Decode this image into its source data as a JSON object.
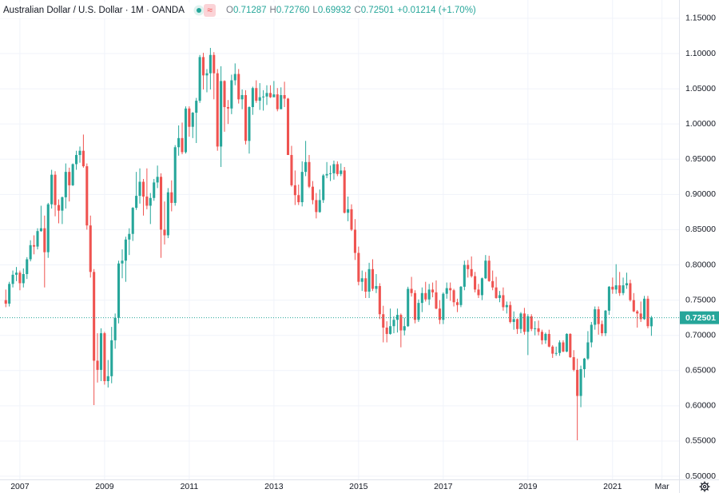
{
  "chart_data": {
    "type": "candlestick",
    "title": "Australian Dollar / U.S. Dollar · 1M · OANDA",
    "badge": "≈",
    "ohlc_legend": [
      {
        "key": "O",
        "value": "0.71287"
      },
      {
        "key": "H",
        "value": "0.72760"
      },
      {
        "key": "L",
        "value": "0.69932"
      },
      {
        "key": "C",
        "value": "0.72501"
      }
    ],
    "change": "+0.01214 (+1.70%)",
    "up_color": "#26a69a",
    "down_color": "#ef5350",
    "last_price": 0.72501,
    "grid": true,
    "xlim": [
      2006.53,
      2022.57
    ],
    "xticks": [
      2007,
      2009,
      2011,
      2013,
      2015,
      2017,
      2019,
      2021,
      {
        "value": 2022.167,
        "label": "Mar"
      }
    ],
    "ylim": [
      0.4955,
      1.176
    ],
    "yticks": [
      {
        "value": 0.5,
        "label": "0.50000"
      },
      {
        "value": 0.55,
        "label": "0.55000"
      },
      {
        "value": 0.6,
        "label": "0.60000"
      },
      {
        "value": 0.65,
        "label": "0.65000"
      },
      {
        "value": 0.7,
        "label": "0.70000"
      },
      {
        "value": 0.75,
        "label": "0.75000"
      },
      {
        "value": 0.8,
        "label": "0.80000"
      },
      {
        "value": 0.85,
        "label": "0.85000"
      },
      {
        "value": 0.9,
        "label": "0.90000"
      },
      {
        "value": 0.95,
        "label": "0.95000"
      },
      {
        "value": 1.0,
        "label": "1.00000"
      },
      {
        "value": 1.05,
        "label": "1.05000"
      },
      {
        "value": 1.1,
        "label": "1.10000"
      },
      {
        "value": 1.15,
        "label": "1.15000"
      }
    ],
    "x": [
      2006.667,
      2006.75,
      2006.833,
      2006.917,
      2007,
      2007.083,
      2007.167,
      2007.25,
      2007.333,
      2007.417,
      2007.5,
      2007.583,
      2007.667,
      2007.75,
      2007.833,
      2007.917,
      2008,
      2008.083,
      2008.167,
      2008.25,
      2008.333,
      2008.417,
      2008.5,
      2008.583,
      2008.667,
      2008.75,
      2008.833,
      2008.917,
      2009,
      2009.083,
      2009.167,
      2009.25,
      2009.333,
      2009.417,
      2009.5,
      2009.583,
      2009.667,
      2009.75,
      2009.833,
      2009.917,
      2010,
      2010.083,
      2010.167,
      2010.25,
      2010.333,
      2010.417,
      2010.5,
      2010.583,
      2010.667,
      2010.75,
      2010.833,
      2010.917,
      2011,
      2011.083,
      2011.167,
      2011.25,
      2011.333,
      2011.417,
      2011.5,
      2011.583,
      2011.667,
      2011.75,
      2011.833,
      2011.917,
      2012,
      2012.083,
      2012.167,
      2012.25,
      2012.333,
      2012.417,
      2012.5,
      2012.583,
      2012.667,
      2012.75,
      2012.833,
      2012.917,
      2013,
      2013.083,
      2013.167,
      2013.25,
      2013.333,
      2013.417,
      2013.5,
      2013.583,
      2013.667,
      2013.75,
      2013.833,
      2013.917,
      2014,
      2014.083,
      2014.167,
      2014.25,
      2014.333,
      2014.417,
      2014.5,
      2014.583,
      2014.667,
      2014.75,
      2014.833,
      2014.917,
      2015,
      2015.083,
      2015.167,
      2015.25,
      2015.333,
      2015.417,
      2015.5,
      2015.583,
      2015.667,
      2015.75,
      2015.833,
      2015.917,
      2016,
      2016.083,
      2016.167,
      2016.25,
      2016.333,
      2016.417,
      2016.5,
      2016.583,
      2016.667,
      2016.75,
      2016.833,
      2016.917,
      2017,
      2017.083,
      2017.167,
      2017.25,
      2017.333,
      2017.417,
      2017.5,
      2017.583,
      2017.667,
      2017.75,
      2017.833,
      2017.917,
      2018,
      2018.083,
      2018.167,
      2018.25,
      2018.333,
      2018.417,
      2018.5,
      2018.583,
      2018.667,
      2018.75,
      2018.833,
      2018.917,
      2019,
      2019.083,
      2019.167,
      2019.25,
      2019.333,
      2019.417,
      2019.5,
      2019.583,
      2019.667,
      2019.75,
      2019.833,
      2019.917,
      2020,
      2020.083,
      2020.167,
      2020.25,
      2020.333,
      2020.417,
      2020.5,
      2020.583,
      2020.667,
      2020.75,
      2020.833,
      2020.917,
      2021,
      2021.083,
      2021.167,
      2021.25,
      2021.333,
      2021.417,
      2021.5,
      2021.583,
      2021.667,
      2021.75,
      2021.833,
      2021.917
    ],
    "open": [
      0.75,
      0.745,
      0.773,
      0.786,
      0.789,
      0.774,
      0.787,
      0.808,
      0.828,
      0.826,
      0.848,
      0.852,
      0.818,
      0.886,
      0.928,
      0.885,
      0.877,
      0.896,
      0.932,
      0.913,
      0.943,
      0.956,
      0.962,
      0.94,
      0.856,
      0.79,
      0.664,
      0.651,
      0.703,
      0.635,
      0.642,
      0.693,
      0.725,
      0.802,
      0.806,
      0.836,
      0.844,
      0.881,
      0.898,
      0.918,
      0.897,
      0.884,
      0.895,
      0.917,
      0.925,
      0.85,
      0.842,
      0.903,
      0.888,
      0.967,
      0.98,
      0.96,
      1.022,
      0.996,
      1.016,
      1.033,
      1.095,
      1.069,
      1.072,
      1.098,
      1.072,
      0.968,
      1.061,
      1.024,
      1.022,
      1.062,
      1.071,
      1.035,
      1.041,
      0.976,
      1.024,
      1.051,
      1.033,
      1.038,
      1.039,
      1.044,
      1.038,
      1.042,
      1.021,
      1.041,
      1.036,
      0.956,
      0.913,
      0.899,
      0.889,
      0.932,
      0.946,
      0.911,
      0.892,
      0.875,
      0.892,
      0.927,
      0.929,
      0.93,
      0.943,
      0.929,
      0.934,
      0.874,
      0.879,
      0.85,
      0.817,
      0.776,
      0.781,
      0.762,
      0.794,
      0.766,
      0.77,
      0.73,
      0.711,
      0.702,
      0.713,
      0.722,
      0.729,
      0.707,
      0.713,
      0.766,
      0.76,
      0.722,
      0.746,
      0.76,
      0.751,
      0.765,
      0.761,
      0.738,
      0.722,
      0.759,
      0.767,
      0.764,
      0.747,
      0.743,
      0.769,
      0.8,
      0.794,
      0.784,
      0.765,
      0.757,
      0.781,
      0.806,
      0.777,
      0.768,
      0.753,
      0.757,
      0.74,
      0.743,
      0.719,
      0.723,
      0.709,
      0.731,
      0.705,
      0.727,
      0.709,
      0.71,
      0.705,
      0.693,
      0.702,
      0.684,
      0.674,
      0.675,
      0.69,
      0.677,
      0.702,
      0.669,
      0.651,
      0.614,
      0.652,
      0.667,
      0.69,
      0.715,
      0.737,
      0.716,
      0.703,
      0.735,
      0.769,
      0.765,
      0.771,
      0.76,
      0.771,
      0.774,
      0.75,
      0.734,
      0.731,
      0.723,
      0.752,
      0.71287
    ],
    "high": [
      0.765,
      0.776,
      0.792,
      0.797,
      0.792,
      0.795,
      0.811,
      0.835,
      0.842,
      0.852,
      0.884,
      0.87,
      0.888,
      0.935,
      0.933,
      0.893,
      0.897,
      0.944,
      0.938,
      0.944,
      0.962,
      0.968,
      0.985,
      0.944,
      0.87,
      0.794,
      0.703,
      0.71,
      0.705,
      0.665,
      0.712,
      0.731,
      0.806,
      0.822,
      0.84,
      0.852,
      0.882,
      0.932,
      0.937,
      0.922,
      0.937,
      0.902,
      0.922,
      0.941,
      0.93,
      0.89,
      0.909,
      0.92,
      0.97,
      0.998,
      1.002,
      1.025,
      1.025,
      1.017,
      1.037,
      1.098,
      1.101,
      1.078,
      1.108,
      1.102,
      1.078,
      1.082,
      1.062,
      1.034,
      1.07,
      1.086,
      1.078,
      1.049,
      1.048,
      1.025,
      1.053,
      1.062,
      1.058,
      1.048,
      1.055,
      1.055,
      1.061,
      1.051,
      1.052,
      1.06,
      1.037,
      0.969,
      0.934,
      0.914,
      0.947,
      0.976,
      0.956,
      0.919,
      0.902,
      0.907,
      0.929,
      0.946,
      0.941,
      0.948,
      0.947,
      0.944,
      0.939,
      0.897,
      0.886,
      0.865,
      0.826,
      0.792,
      0.79,
      0.803,
      0.808,
      0.787,
      0.774,
      0.742,
      0.72,
      0.738,
      0.727,
      0.738,
      0.731,
      0.725,
      0.769,
      0.783,
      0.764,
      0.751,
      0.768,
      0.776,
      0.773,
      0.775,
      0.778,
      0.75,
      0.761,
      0.775,
      0.775,
      0.766,
      0.752,
      0.77,
      0.806,
      0.807,
      0.812,
      0.79,
      0.773,
      0.782,
      0.814,
      0.813,
      0.792,
      0.783,
      0.763,
      0.768,
      0.748,
      0.748,
      0.734,
      0.724,
      0.733,
      0.739,
      0.73,
      0.73,
      0.72,
      0.721,
      0.708,
      0.704,
      0.708,
      0.686,
      0.684,
      0.693,
      0.693,
      0.703,
      0.703,
      0.679,
      0.667,
      0.657,
      0.668,
      0.706,
      0.719,
      0.741,
      0.741,
      0.721,
      0.736,
      0.77,
      0.782,
      0.801,
      0.79,
      0.782,
      0.789,
      0.779,
      0.76,
      0.736,
      0.748,
      0.756,
      0.756,
      0.7276
    ],
    "low": [
      0.74,
      0.741,
      0.768,
      0.777,
      0.764,
      0.768,
      0.78,
      0.805,
      0.815,
      0.822,
      0.847,
      0.768,
      0.81,
      0.88,
      0.869,
      0.859,
      0.858,
      0.88,
      0.89,
      0.912,
      0.935,
      0.945,
      0.938,
      0.85,
      0.782,
      0.601,
      0.633,
      0.635,
      0.63,
      0.626,
      0.632,
      0.681,
      0.717,
      0.781,
      0.776,
      0.814,
      0.834,
      0.878,
      0.887,
      0.87,
      0.879,
      0.858,
      0.891,
      0.909,
      0.81,
      0.829,
      0.838,
      0.876,
      0.884,
      0.955,
      0.957,
      0.958,
      0.982,
      0.98,
      0.973,
      1.03,
      1.049,
      1.045,
      1.049,
      1.035,
      0.962,
      0.939,
      0.989,
      1.0,
      1.014,
      1.055,
      1.029,
      1.021,
      0.971,
      0.958,
      1.013,
      1.03,
      1.02,
      1.019,
      1.027,
      1.037,
      1.038,
      1.018,
      1.021,
      1.024,
      0.956,
      0.911,
      0.885,
      0.885,
      0.883,
      0.926,
      0.909,
      0.886,
      0.866,
      0.874,
      0.888,
      0.923,
      0.919,
      0.921,
      0.926,
      0.926,
      0.873,
      0.862,
      0.848,
      0.807,
      0.771,
      0.763,
      0.753,
      0.753,
      0.763,
      0.76,
      0.723,
      0.69,
      0.69,
      0.701,
      0.703,
      0.704,
      0.683,
      0.7,
      0.712,
      0.755,
      0.717,
      0.719,
      0.733,
      0.748,
      0.743,
      0.754,
      0.737,
      0.716,
      0.716,
      0.752,
      0.749,
      0.741,
      0.733,
      0.74,
      0.764,
      0.782,
      0.782,
      0.761,
      0.753,
      0.75,
      0.78,
      0.776,
      0.764,
      0.752,
      0.747,
      0.735,
      0.731,
      0.717,
      0.708,
      0.702,
      0.703,
      0.701,
      0.672,
      0.706,
      0.7,
      0.7,
      0.687,
      0.688,
      0.683,
      0.668,
      0.671,
      0.671,
      0.676,
      0.676,
      0.668,
      0.649,
      0.551,
      0.598,
      0.64,
      0.665,
      0.683,
      0.708,
      0.701,
      0.699,
      0.699,
      0.729,
      0.759,
      0.759,
      0.756,
      0.757,
      0.766,
      0.748,
      0.733,
      0.711,
      0.719,
      0.722,
      0.71,
      0.69932
    ],
    "close": [
      0.745,
      0.773,
      0.786,
      0.789,
      0.774,
      0.787,
      0.808,
      0.828,
      0.826,
      0.848,
      0.852,
      0.818,
      0.886,
      0.928,
      0.885,
      0.877,
      0.896,
      0.932,
      0.913,
      0.943,
      0.956,
      0.962,
      0.94,
      0.856,
      0.79,
      0.664,
      0.651,
      0.703,
      0.635,
      0.642,
      0.693,
      0.725,
      0.802,
      0.806,
      0.836,
      0.844,
      0.881,
      0.898,
      0.918,
      0.897,
      0.884,
      0.895,
      0.917,
      0.925,
      0.85,
      0.842,
      0.903,
      0.888,
      0.967,
      0.98,
      0.96,
      1.022,
      0.996,
      1.016,
      1.033,
      1.095,
      1.069,
      1.072,
      1.098,
      1.072,
      0.968,
      1.061,
      1.024,
      1.022,
      1.062,
      1.071,
      1.035,
      1.041,
      0.976,
      1.024,
      1.051,
      1.033,
      1.038,
      1.039,
      1.044,
      1.038,
      1.042,
      1.021,
      1.041,
      1.036,
      0.956,
      0.913,
      0.899,
      0.889,
      0.932,
      0.946,
      0.911,
      0.892,
      0.875,
      0.892,
      0.927,
      0.929,
      0.93,
      0.943,
      0.929,
      0.934,
      0.874,
      0.879,
      0.85,
      0.817,
      0.776,
      0.781,
      0.762,
      0.794,
      0.766,
      0.77,
      0.73,
      0.711,
      0.702,
      0.713,
      0.722,
      0.729,
      0.707,
      0.713,
      0.766,
      0.76,
      0.722,
      0.746,
      0.76,
      0.751,
      0.765,
      0.761,
      0.738,
      0.722,
      0.759,
      0.767,
      0.764,
      0.747,
      0.743,
      0.769,
      0.8,
      0.794,
      0.784,
      0.765,
      0.757,
      0.781,
      0.806,
      0.777,
      0.768,
      0.753,
      0.757,
      0.74,
      0.743,
      0.719,
      0.723,
      0.709,
      0.731,
      0.705,
      0.727,
      0.709,
      0.71,
      0.705,
      0.693,
      0.702,
      0.684,
      0.674,
      0.675,
      0.69,
      0.677,
      0.702,
      0.669,
      0.651,
      0.614,
      0.652,
      0.667,
      0.69,
      0.715,
      0.737,
      0.716,
      0.703,
      0.735,
      0.769,
      0.765,
      0.771,
      0.76,
      0.771,
      0.774,
      0.75,
      0.734,
      0.731,
      0.723,
      0.752,
      0.713,
      0.72501
    ]
  }
}
